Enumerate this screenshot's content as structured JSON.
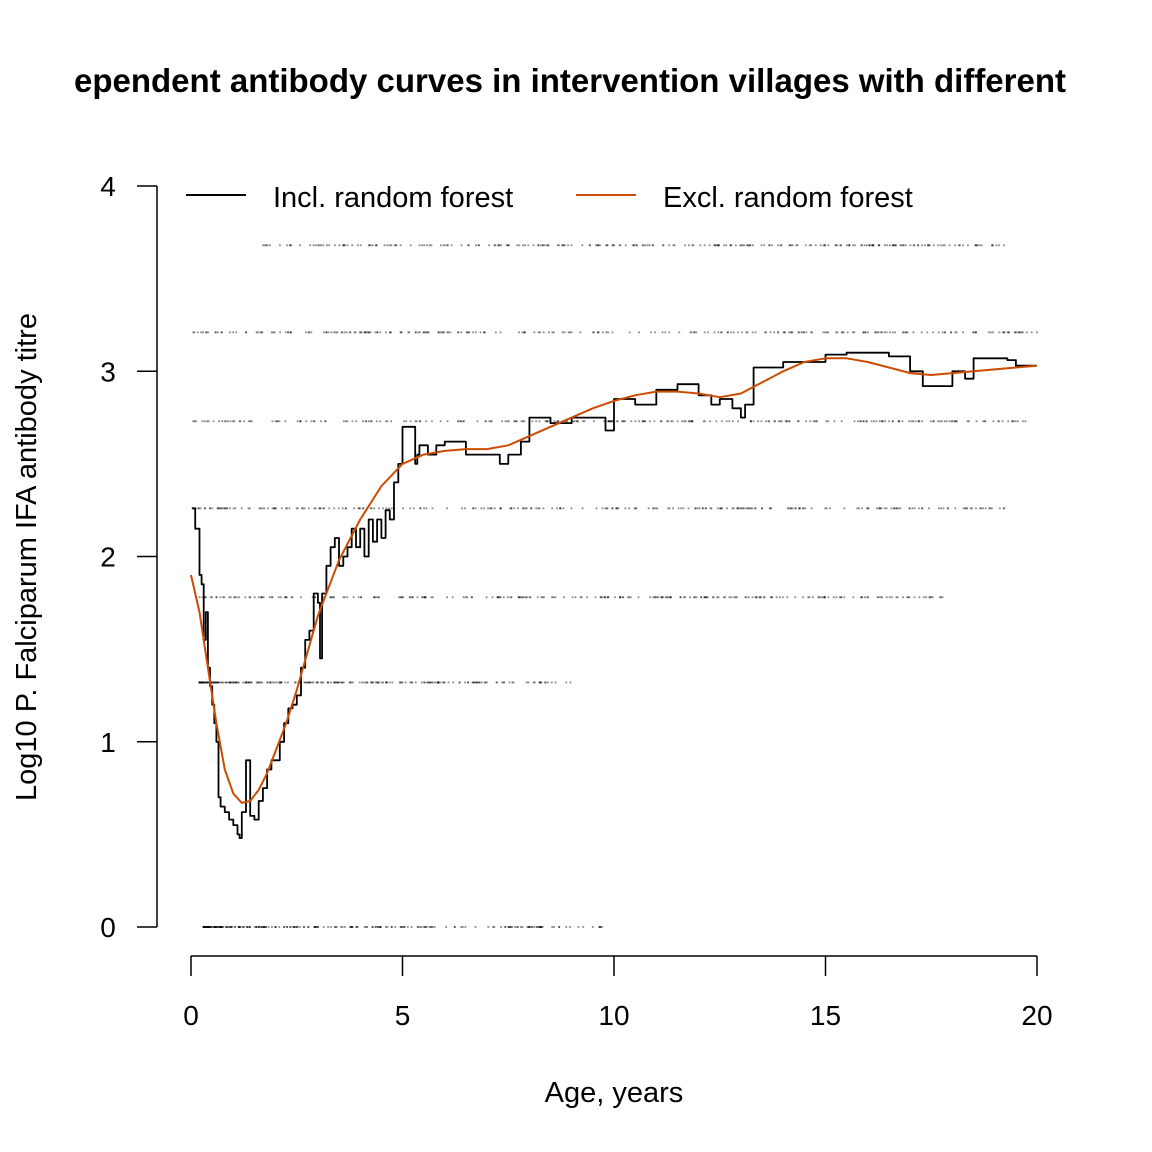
{
  "chart_data": {
    "type": "line",
    "title": "ependent antibody curves in intervention villages with different",
    "xlabel": "Age, years",
    "ylabel": "Log10 P. Falciparum IFA antibody titre",
    "xlim": [
      0,
      20
    ],
    "ylim": [
      0,
      4
    ],
    "x_ticks": [
      "0",
      "5",
      "10",
      "15",
      "20"
    ],
    "y_ticks": [
      "0",
      "1",
      "2",
      "3",
      "4"
    ],
    "legend_position": "top",
    "colors": {
      "incl": "#000000",
      "excl": "#cc4c02",
      "points": "#000000"
    },
    "series": [
      {
        "name": "Incl. random forest",
        "color": "#000000",
        "x": [
          0.02,
          0.1,
          0.2,
          0.25,
          0.3,
          0.35,
          0.4,
          0.45,
          0.5,
          0.55,
          0.6,
          0.65,
          0.7,
          0.8,
          0.9,
          1.0,
          1.1,
          1.15,
          1.2,
          1.3,
          1.4,
          1.5,
          1.6,
          1.7,
          1.8,
          1.9,
          2.0,
          2.1,
          2.2,
          2.3,
          2.4,
          2.5,
          2.6,
          2.7,
          2.8,
          2.9,
          3.0,
          3.05,
          3.1,
          3.2,
          3.3,
          3.4,
          3.5,
          3.6,
          3.7,
          3.8,
          3.9,
          4.0,
          4.1,
          4.2,
          4.3,
          4.4,
          4.5,
          4.6,
          4.7,
          4.8,
          4.9,
          5.0,
          5.3,
          5.35,
          5.4,
          5.6,
          5.8,
          6.0,
          6.5,
          7.0,
          7.3,
          7.5,
          7.8,
          8.0,
          8.5,
          9.0,
          9.5,
          9.8,
          10.0,
          10.5,
          11.0,
          11.5,
          12.0,
          12.3,
          12.5,
          12.8,
          13.0,
          13.1,
          13.3,
          14.0,
          15.0,
          15.5,
          16.0,
          16.5,
          17.0,
          17.3,
          17.5,
          17.8,
          18.0,
          18.3,
          18.5,
          19.0,
          19.3,
          19.5,
          20.0
        ],
        "y": [
          2.26,
          2.15,
          1.9,
          1.85,
          1.55,
          1.7,
          1.4,
          1.3,
          1.2,
          1.1,
          1.0,
          0.7,
          0.65,
          0.62,
          0.58,
          0.55,
          0.5,
          0.48,
          0.62,
          0.9,
          0.6,
          0.58,
          0.68,
          0.75,
          0.85,
          0.9,
          0.9,
          1.0,
          1.1,
          1.18,
          1.2,
          1.25,
          1.4,
          1.55,
          1.6,
          1.8,
          1.75,
          1.45,
          1.8,
          1.95,
          2.05,
          2.1,
          1.95,
          2.0,
          2.05,
          2.15,
          2.05,
          2.15,
          2.0,
          2.2,
          2.08,
          2.2,
          2.1,
          2.25,
          2.2,
          2.4,
          2.5,
          2.7,
          2.5,
          2.55,
          2.6,
          2.55,
          2.6,
          2.62,
          2.55,
          2.55,
          2.5,
          2.55,
          2.62,
          2.75,
          2.72,
          2.75,
          2.75,
          2.68,
          2.85,
          2.82,
          2.9,
          2.93,
          2.87,
          2.82,
          2.85,
          2.8,
          2.75,
          2.82,
          3.02,
          3.05,
          3.09,
          3.1,
          3.1,
          3.08,
          3.0,
          2.92,
          2.92,
          2.92,
          3.0,
          2.96,
          3.07,
          3.07,
          3.06,
          3.03,
          3.03
        ]
      },
      {
        "name": "Excl. random forest",
        "color": "#cc4c02",
        "x": [
          0.0,
          0.2,
          0.4,
          0.6,
          0.8,
          1.0,
          1.2,
          1.4,
          1.6,
          1.8,
          2.0,
          2.25,
          2.5,
          2.75,
          3.0,
          3.5,
          4.0,
          4.5,
          5.0,
          5.5,
          6.0,
          6.5,
          7.0,
          7.5,
          8.0,
          8.5,
          9.0,
          9.5,
          10.0,
          10.5,
          11.0,
          11.5,
          12.0,
          12.5,
          13.0,
          13.5,
          14.0,
          14.5,
          15.0,
          15.5,
          16.0,
          16.5,
          17.0,
          17.5,
          18.0,
          18.5,
          19.0,
          19.5,
          20.0
        ],
        "y": [
          1.9,
          1.7,
          1.4,
          1.1,
          0.85,
          0.72,
          0.67,
          0.68,
          0.74,
          0.83,
          0.95,
          1.1,
          1.28,
          1.48,
          1.68,
          1.98,
          2.2,
          2.38,
          2.5,
          2.55,
          2.57,
          2.58,
          2.58,
          2.6,
          2.65,
          2.7,
          2.75,
          2.8,
          2.84,
          2.87,
          2.89,
          2.89,
          2.88,
          2.86,
          2.88,
          2.94,
          3.0,
          3.05,
          3.07,
          3.07,
          3.05,
          3.02,
          2.99,
          2.98,
          2.99,
          3.0,
          3.01,
          3.02,
          3.03
        ]
      }
    ],
    "raw_observation_levels": [
      0,
      1.32,
      1.78,
      2.26,
      2.73,
      3.21,
      3.68
    ],
    "raw_observation_x_extent": [
      [
        0.3,
        9.8
      ],
      [
        0.2,
        9.1
      ],
      [
        0.1,
        17.8
      ],
      [
        0.05,
        19.5
      ],
      [
        0.05,
        19.9
      ],
      [
        0.05,
        20.0
      ],
      [
        1.7,
        19.3
      ]
    ]
  }
}
